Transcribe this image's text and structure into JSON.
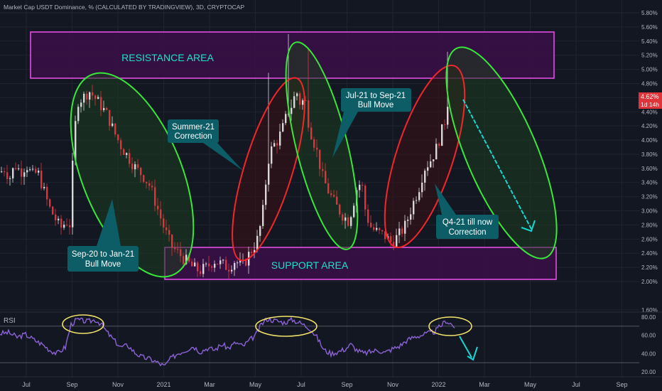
{
  "header": {
    "title": "Market Cap USDT Dominance, % (CALCULATED BY TRADINGVIEW), 3D, CRYPTOCAP"
  },
  "price_tag": {
    "value": "4.62%",
    "countdown": "1d 14h"
  },
  "colors": {
    "background": "#131722",
    "up": "#d8d8d8",
    "down": "#e0343b",
    "grid": "#1f2430",
    "zone_fill": "#3a0f46",
    "zone_border": "#e14ee3",
    "zone_text": "#19e3c6",
    "ellipse_green": "#39e63a",
    "ellipse_red": "#f3262c",
    "callout_bg": "#0d5d66",
    "callout_text": "#ffffff",
    "arrow": "#19d6d0",
    "rsi_line": "#8c63d6",
    "rsi_circle": "#f2e36a"
  },
  "chart_data": [
    {
      "type": "candlestick",
      "series_name": "Market Cap USDT Dominance, %",
      "ylim": [
        1.5,
        5.95
      ],
      "yticks": [
        "5.80%",
        "5.60%",
        "5.40%",
        "5.20%",
        "5.00%",
        "4.80%",
        "4.60%",
        "4.40%",
        "4.20%",
        "4.00%",
        "3.80%",
        "3.60%",
        "3.40%",
        "3.20%",
        "3.00%",
        "2.80%",
        "2.60%",
        "2.40%",
        "2.20%",
        "2.00%",
        "1.60%"
      ],
      "x_ticks": [
        "Jul",
        "Sep",
        "Nov",
        "2021",
        "Mar",
        "May",
        "Jul",
        "Sep",
        "Nov",
        "2022",
        "Mar",
        "May",
        "Jul",
        "Sep"
      ],
      "path": [
        [
          0,
          3.55
        ],
        [
          6,
          3.6
        ],
        [
          12,
          3.45
        ],
        [
          20,
          3.65
        ],
        [
          28,
          3.55
        ],
        [
          36,
          3.65
        ],
        [
          44,
          3.5
        ],
        [
          52,
          3.55
        ],
        [
          60,
          3.3
        ],
        [
          68,
          3.05
        ],
        [
          76,
          2.9
        ],
        [
          84,
          2.75
        ],
        [
          92,
          2.85
        ],
        [
          98,
          2.8
        ],
        [
          102,
          3.9
        ],
        [
          108,
          4.55
        ],
        [
          116,
          4.6
        ],
        [
          124,
          4.7
        ],
        [
          132,
          4.6
        ],
        [
          140,
          4.5
        ],
        [
          150,
          4.35
        ],
        [
          160,
          4.1
        ],
        [
          170,
          3.9
        ],
        [
          180,
          3.75
        ],
        [
          190,
          3.6
        ],
        [
          200,
          3.5
        ],
        [
          210,
          3.35
        ],
        [
          220,
          3.05
        ],
        [
          230,
          2.75
        ],
        [
          240,
          2.5
        ],
        [
          250,
          2.4
        ],
        [
          260,
          2.3
        ],
        [
          270,
          2.2
        ],
        [
          280,
          2.15
        ],
        [
          290,
          2.2
        ],
        [
          300,
          2.3
        ],
        [
          310,
          2.25
        ],
        [
          320,
          2.2
        ],
        [
          330,
          2.3
        ],
        [
          340,
          2.2
        ],
        [
          350,
          2.4
        ],
        [
          360,
          2.55
        ],
        [
          368,
          2.9
        ],
        [
          372,
          3.3
        ],
        [
          376,
          3.7
        ],
        [
          382,
          3.9
        ],
        [
          390,
          4.0
        ],
        [
          398,
          4.2
        ],
        [
          404,
          4.4
        ],
        [
          410,
          4.5
        ],
        [
          416,
          4.7
        ],
        [
          422,
          4.5
        ],
        [
          428,
          4.6
        ],
        [
          434,
          4.2
        ],
        [
          440,
          4.0
        ],
        [
          446,
          3.8
        ],
        [
          452,
          3.5
        ],
        [
          460,
          3.3
        ],
        [
          470,
          3.1
        ],
        [
          480,
          2.95
        ],
        [
          490,
          2.85
        ],
        [
          496,
          3.1
        ],
        [
          502,
          3.35
        ],
        [
          508,
          3.4
        ],
        [
          514,
          2.95
        ],
        [
          522,
          2.75
        ],
        [
          530,
          2.7
        ],
        [
          540,
          2.65
        ],
        [
          550,
          2.55
        ],
        [
          560,
          2.65
        ],
        [
          570,
          2.8
        ],
        [
          580,
          3.1
        ],
        [
          588,
          3.3
        ],
        [
          596,
          3.6
        ],
        [
          604,
          3.7
        ],
        [
          612,
          3.85
        ],
        [
          620,
          4.1
        ],
        [
          626,
          4.3
        ],
        [
          630,
          4.62
        ]
      ],
      "spikes": [
        [
          375,
          4.95
        ],
        [
          405,
          5.5
        ],
        [
          432,
          5.3
        ],
        [
          628,
          5.25
        ]
      ]
    },
    {
      "type": "line",
      "series_name": "RSI",
      "label": "RSI",
      "ylim": [
        15,
        90
      ],
      "yticks": [
        "80.00",
        "60.00",
        "40.00",
        "20.00"
      ],
      "bands": [
        70,
        30
      ],
      "path": [
        [
          0,
          62
        ],
        [
          12,
          63
        ],
        [
          24,
          58
        ],
        [
          36,
          61
        ],
        [
          48,
          55
        ],
        [
          60,
          50
        ],
        [
          70,
          44
        ],
        [
          80,
          40
        ],
        [
          92,
          47
        ],
        [
          100,
          72
        ],
        [
          108,
          77
        ],
        [
          116,
          76
        ],
        [
          124,
          75
        ],
        [
          134,
          77
        ],
        [
          142,
          73
        ],
        [
          150,
          64
        ],
        [
          160,
          55
        ],
        [
          170,
          47
        ],
        [
          180,
          49
        ],
        [
          190,
          41
        ],
        [
          200,
          36
        ],
        [
          212,
          34
        ],
        [
          222,
          30
        ],
        [
          232,
          26
        ],
        [
          238,
          33
        ],
        [
          250,
          40
        ],
        [
          262,
          44
        ],
        [
          272,
          48
        ],
        [
          282,
          42
        ],
        [
          292,
          46
        ],
        [
          302,
          44
        ],
        [
          312,
          50
        ],
        [
          322,
          46
        ],
        [
          332,
          52
        ],
        [
          342,
          48
        ],
        [
          352,
          55
        ],
        [
          360,
          60
        ],
        [
          368,
          72
        ],
        [
          376,
          78
        ],
        [
          388,
          76
        ],
        [
          400,
          74
        ],
        [
          412,
          77
        ],
        [
          424,
          73
        ],
        [
          436,
          68
        ],
        [
          446,
          58
        ],
        [
          456,
          44
        ],
        [
          466,
          40
        ],
        [
          476,
          42
        ],
        [
          486,
          45
        ],
        [
          494,
          50
        ],
        [
          502,
          44
        ],
        [
          512,
          40
        ],
        [
          522,
          42
        ],
        [
          532,
          44
        ],
        [
          542,
          41
        ],
        [
          552,
          45
        ],
        [
          562,
          48
        ],
        [
          572,
          54
        ],
        [
          582,
          58
        ],
        [
          592,
          60
        ],
        [
          602,
          62
        ],
        [
          612,
          64
        ],
        [
          620,
          70
        ],
        [
          628,
          76
        ],
        [
          636,
          72
        ],
        [
          640,
          68
        ]
      ]
    }
  ],
  "annotations": {
    "resistance": "RESISTANCE AREA",
    "support": "SUPPORT AREA",
    "callouts": [
      {
        "line1": "Sep-20 to Jan-21",
        "line2": "Bull Move"
      },
      {
        "line1": "Summer-21",
        "line2": "Correction"
      },
      {
        "line1": "Jul-21 to Sep-21",
        "line2": "Bull Move"
      },
      {
        "line1": "Q4-21 till now",
        "line2": "Correction"
      }
    ]
  }
}
